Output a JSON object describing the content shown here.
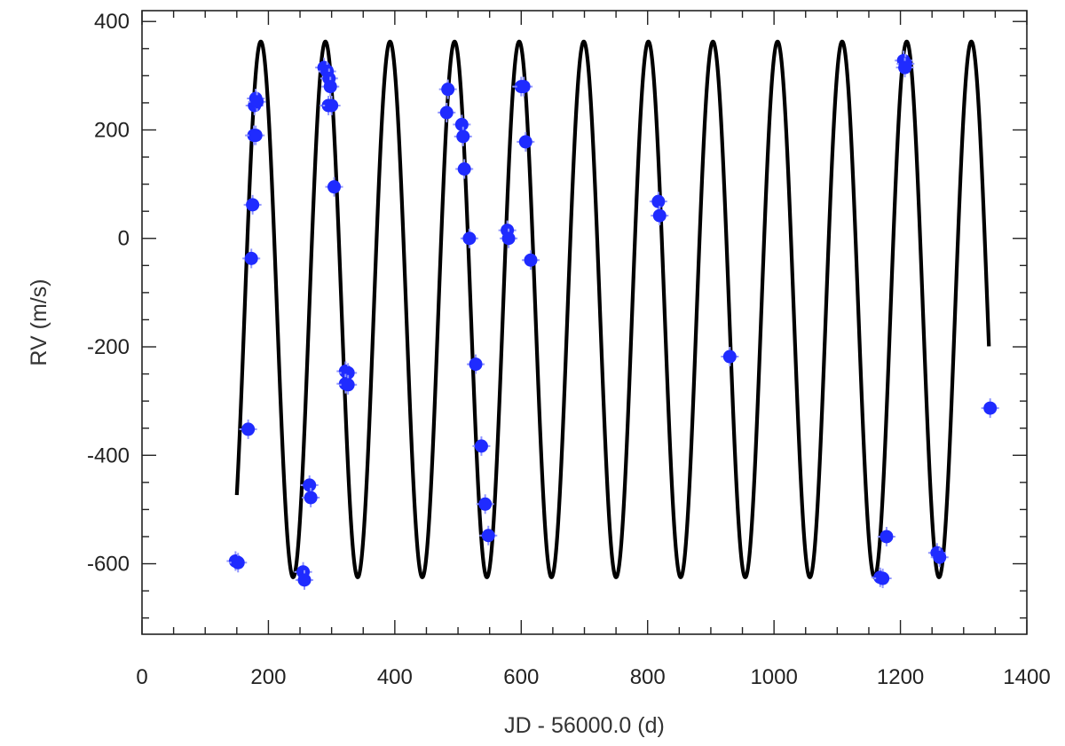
{
  "chart_data": {
    "type": "scatter",
    "xlabel": "JD - 56000.0 (d)",
    "ylabel": "RV (m/s)",
    "xlim": [
      0,
      1400
    ],
    "ylim": [
      -730,
      420
    ],
    "x_ticks": [
      0,
      200,
      400,
      600,
      800,
      1000,
      1200,
      1400
    ],
    "y_ticks": [
      -600,
      -400,
      -200,
      0,
      200,
      400
    ],
    "grid": false,
    "model_curve": {
      "x_range": [
        150,
        1340
      ],
      "period": 102.2,
      "maximum_at": 188,
      "maximum": 363,
      "minimum": -625
    },
    "series": [
      {
        "color": "#1f2bff",
        "points": [
          {
            "x": 148,
            "y": -595
          },
          {
            "x": 152,
            "y": -598
          },
          {
            "x": 168,
            "y": -352
          },
          {
            "x": 173,
            "y": -37
          },
          {
            "x": 175,
            "y": 62
          },
          {
            "x": 177,
            "y": 190
          },
          {
            "x": 180,
            "y": 190
          },
          {
            "x": 178,
            "y": 245
          },
          {
            "x": 180,
            "y": 258
          },
          {
            "x": 182,
            "y": 252
          },
          {
            "x": 255,
            "y": -615
          },
          {
            "x": 257,
            "y": -630
          },
          {
            "x": 265,
            "y": -455
          },
          {
            "x": 267,
            "y": -478
          },
          {
            "x": 288,
            "y": 315
          },
          {
            "x": 293,
            "y": 308
          },
          {
            "x": 296,
            "y": 295
          },
          {
            "x": 298,
            "y": 280
          },
          {
            "x": 295,
            "y": 245
          },
          {
            "x": 300,
            "y": 245
          },
          {
            "x": 304,
            "y": 95
          },
          {
            "x": 322,
            "y": -245
          },
          {
            "x": 326,
            "y": -248
          },
          {
            "x": 322,
            "y": -268
          },
          {
            "x": 326,
            "y": -270
          },
          {
            "x": 484,
            "y": 275
          },
          {
            "x": 482,
            "y": 232
          },
          {
            "x": 506,
            "y": 210
          },
          {
            "x": 508,
            "y": 188
          },
          {
            "x": 510,
            "y": 128
          },
          {
            "x": 518,
            "y": 0
          },
          {
            "x": 528,
            "y": -232
          },
          {
            "x": 537,
            "y": -383
          },
          {
            "x": 543,
            "y": -490
          },
          {
            "x": 548,
            "y": -548
          },
          {
            "x": 578,
            "y": 15
          },
          {
            "x": 580,
            "y": 0
          },
          {
            "x": 600,
            "y": 280
          },
          {
            "x": 604,
            "y": 280
          },
          {
            "x": 607,
            "y": 178
          },
          {
            "x": 615,
            "y": -40
          },
          {
            "x": 817,
            "y": 68
          },
          {
            "x": 819,
            "y": 42
          },
          {
            "x": 930,
            "y": -218
          },
          {
            "x": 1168,
            "y": -625
          },
          {
            "x": 1172,
            "y": -627
          },
          {
            "x": 1178,
            "y": -550
          },
          {
            "x": 1205,
            "y": 328
          },
          {
            "x": 1208,
            "y": 322
          },
          {
            "x": 1207,
            "y": 315
          },
          {
            "x": 1258,
            "y": -580
          },
          {
            "x": 1262,
            "y": -588
          },
          {
            "x": 1342,
            "y": -313
          }
        ]
      }
    ]
  }
}
